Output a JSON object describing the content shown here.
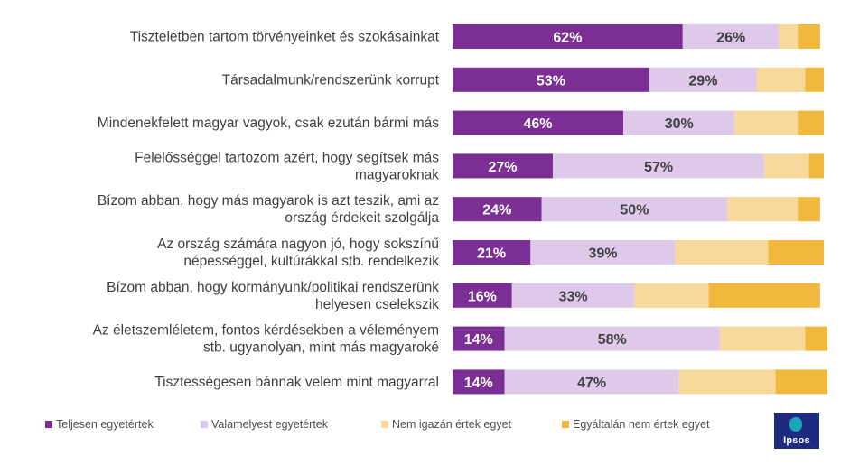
{
  "chart_data": {
    "type": "bar",
    "orientation": "horizontal",
    "stacked": true,
    "categories": [
      "Tiszteletben tartom törvényeinket és szokásainkat",
      "Társadalmunk/rendszerünk korrupt",
      "Mindenekfelett magyar vagyok, csak ezután bármi más",
      "Felelősséggel tartozom azért, hogy segítsek más magyaroknak",
      "Bízom abban, hogy más magyarok is azt teszik, ami az ország érdekeit szolgálja",
      "Az ország számára nagyon jó, hogy sokszínű népességgel, kultúrákkal stb. rendelkezik",
      "Bízom abban, hogy kormányunk/politikai rendszerünk helyesen cselekszik",
      "Az életszemléletem, fontos kérdésekben a véleményem stb. ugyanolyan, mint más magyaroké",
      "Tisztességesen bánnak velem mint magyarral"
    ],
    "series": [
      {
        "name": "Teljesen egyetértek",
        "color": "#7b2e94",
        "label_color": "#ffffff",
        "values": [
          62,
          53,
          46,
          27,
          24,
          21,
          16,
          14,
          14
        ]
      },
      {
        "name": "Valamelyest egyetértek",
        "color": "#dec9ea",
        "label_color": "#404040",
        "values": [
          26,
          29,
          30,
          57,
          50,
          39,
          33,
          58,
          47
        ]
      },
      {
        "name": "Nem igazán értek egyet",
        "color": "#f7d99b",
        "label_color": "#404040",
        "values": [
          5,
          13,
          17,
          12,
          19,
          25,
          20,
          23,
          26
        ]
      },
      {
        "name": "Egyáltalán nem értek egyet",
        "color": "#f0b93e",
        "label_color": "#404040",
        "values": [
          6,
          5,
          7,
          4,
          6,
          15,
          30,
          6,
          14
        ]
      }
    ],
    "labeled_series": 2,
    "label_suffix": "%",
    "xlim": [
      0,
      100
    ],
    "legend_position": "bottom"
  },
  "legend": {
    "items": [
      {
        "label": "Teljesen egyetértek",
        "color": "#7b2e94"
      },
      {
        "label": "Valamelyest egyetértek",
        "color": "#dec9ea"
      },
      {
        "label": "Nem igazán értek egyet",
        "color": "#f7d99b"
      },
      {
        "label": "Egyáltalán nem értek egyet",
        "color": "#f0b93e"
      }
    ]
  },
  "logo": {
    "text": "Ipsos"
  }
}
